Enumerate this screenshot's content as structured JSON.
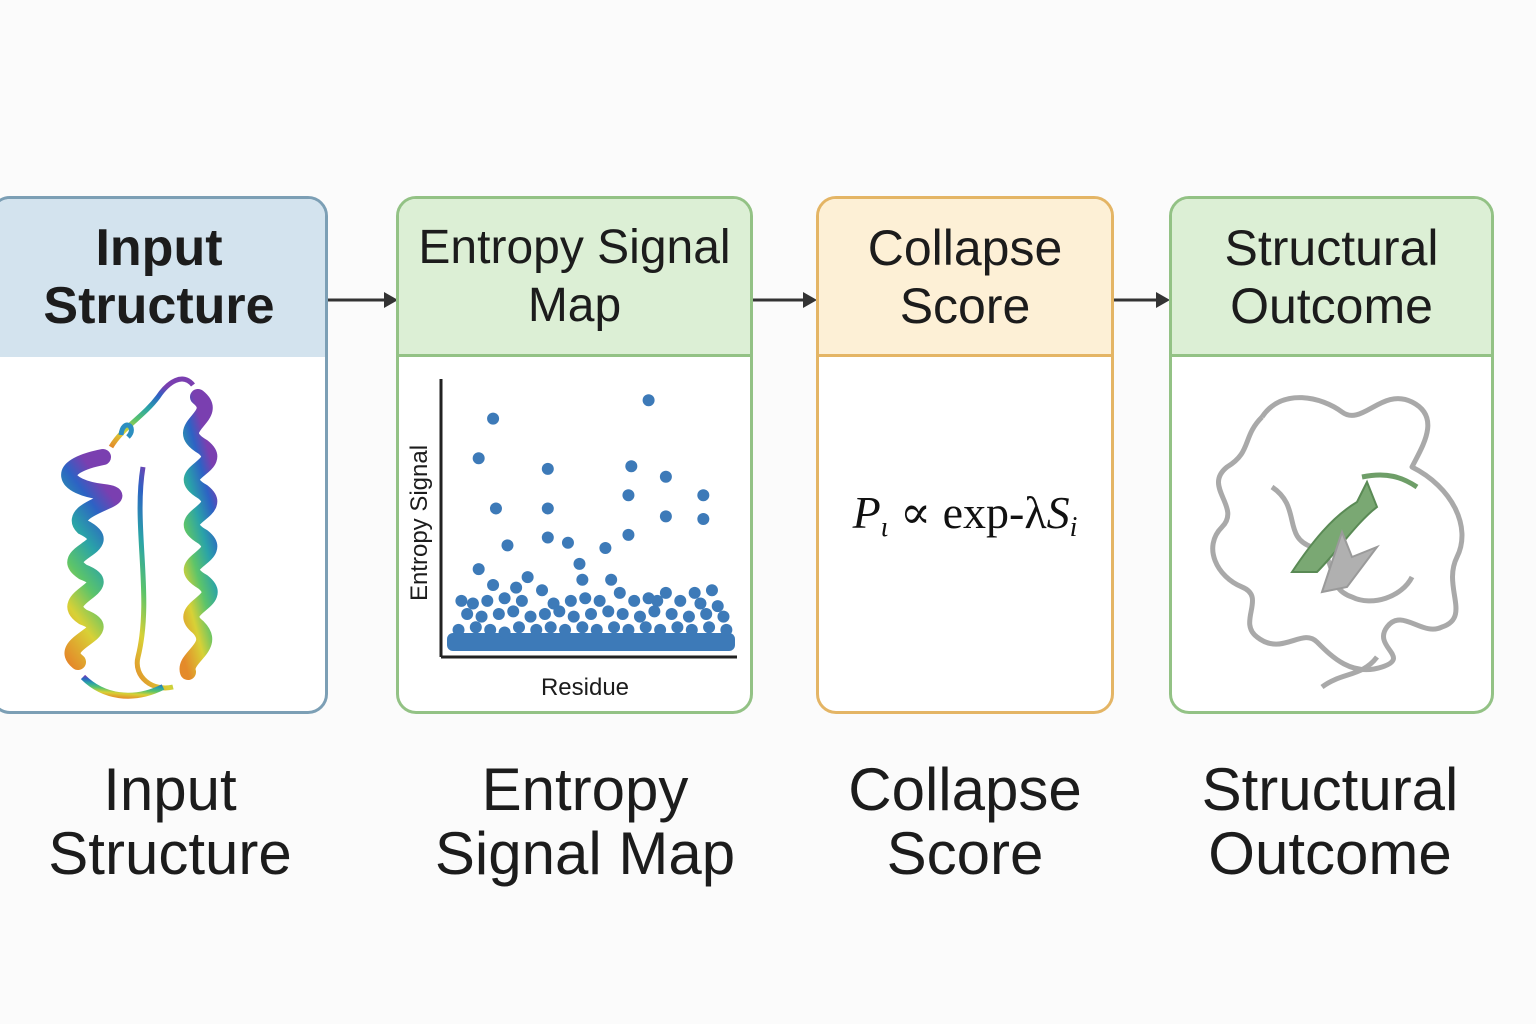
{
  "panels": [
    {
      "title_line1": "Input",
      "title_line2": "Structure"
    },
    {
      "title_line1": "Entropy Signal",
      "title_line2": "Map"
    },
    {
      "title_line1": "Collapse",
      "title_line2": "Score"
    },
    {
      "title_line1": "Structural",
      "title_line2": "Outcome"
    }
  ],
  "captions": [
    {
      "line1": "Input",
      "line2": "Structure"
    },
    {
      "line1": "Entropy",
      "line2": "Signal Map"
    },
    {
      "line1": "Collapse",
      "line2": "Score"
    },
    {
      "line1": "Structural",
      "line2": "Outcome"
    }
  ],
  "formula": {
    "lhs_symbol": "P",
    "lhs_sub": "ι",
    "relation": "∝",
    "func": "exp-λ",
    "rhs_symbol": "S",
    "rhs_sub": "i"
  },
  "colors": {
    "scatter_point": "#3d7ab8",
    "outcome_strand": "#6e9e68",
    "outcome_coil": "#a9a9a9"
  },
  "chart_data": {
    "type": "scatter",
    "xlabel": "Residue",
    "ylabel": "Entropy Signal",
    "x_range": [
      0,
      100
    ],
    "y_range": [
      0,
      100
    ],
    "points": [
      [
        16,
        88
      ],
      [
        70,
        95
      ],
      [
        11,
        73
      ],
      [
        35,
        69
      ],
      [
        64,
        70
      ],
      [
        76,
        66
      ],
      [
        89,
        59
      ],
      [
        17,
        54
      ],
      [
        35,
        54
      ],
      [
        63,
        59
      ],
      [
        76,
        51
      ],
      [
        89,
        50
      ],
      [
        21,
        40
      ],
      [
        35,
        43
      ],
      [
        42,
        41
      ],
      [
        55,
        39
      ],
      [
        63,
        44
      ],
      [
        46,
        33
      ],
      [
        11,
        31
      ],
      [
        28,
        28
      ],
      [
        47,
        27
      ],
      [
        57,
        27
      ],
      [
        16,
        25
      ],
      [
        24,
        24
      ],
      [
        33,
        23
      ],
      [
        60,
        22
      ],
      [
        76,
        22
      ],
      [
        86,
        22
      ],
      [
        92,
        23
      ],
      [
        5,
        19
      ],
      [
        9,
        18
      ],
      [
        14,
        19
      ],
      [
        20,
        20
      ],
      [
        26,
        19
      ],
      [
        37,
        18
      ],
      [
        43,
        19
      ],
      [
        48,
        20
      ],
      [
        53,
        19
      ],
      [
        65,
        19
      ],
      [
        70,
        20
      ],
      [
        73,
        19
      ],
      [
        81,
        19
      ],
      [
        88,
        18
      ],
      [
        94,
        17
      ],
      [
        7,
        14
      ],
      [
        12,
        13
      ],
      [
        18,
        14
      ],
      [
        23,
        15
      ],
      [
        29,
        13
      ],
      [
        34,
        14
      ],
      [
        39,
        15
      ],
      [
        44,
        13
      ],
      [
        50,
        14
      ],
      [
        56,
        15
      ],
      [
        61,
        14
      ],
      [
        67,
        13
      ],
      [
        72,
        15
      ],
      [
        78,
        14
      ],
      [
        84,
        13
      ],
      [
        90,
        14
      ],
      [
        96,
        13
      ],
      [
        4,
        8
      ],
      [
        10,
        9
      ],
      [
        15,
        8
      ],
      [
        20,
        7
      ],
      [
        25,
        9
      ],
      [
        31,
        8
      ],
      [
        36,
        9
      ],
      [
        41,
        8
      ],
      [
        47,
        9
      ],
      [
        52,
        8
      ],
      [
        58,
        9
      ],
      [
        63,
        8
      ],
      [
        69,
        9
      ],
      [
        74,
        8
      ],
      [
        80,
        9
      ],
      [
        85,
        8
      ],
      [
        91,
        9
      ],
      [
        97,
        8
      ]
    ]
  }
}
